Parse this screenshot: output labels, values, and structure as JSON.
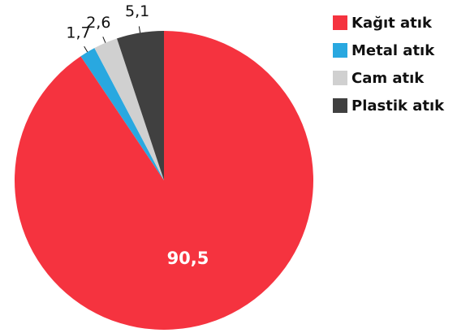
{
  "chart_data": {
    "type": "pie",
    "categories": [
      "Kağıt atık",
      "Metal atık",
      "Cam atık",
      "Plastik atık"
    ],
    "values": [
      90.5,
      1.7,
      2.6,
      5.1
    ],
    "value_labels": [
      "90,5",
      "1,7",
      "2,6",
      "5,1"
    ],
    "colors": [
      "#f5333f",
      "#29a8e0",
      "#d0d0d0",
      "#404040"
    ],
    "legend": "top-right"
  }
}
